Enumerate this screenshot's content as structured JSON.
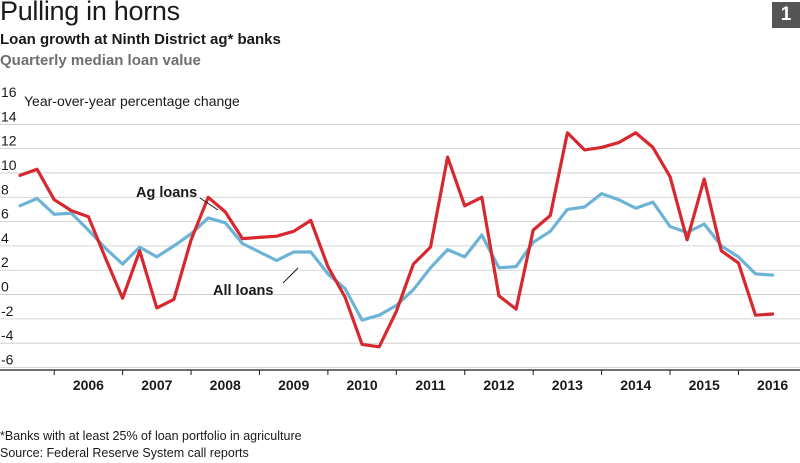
{
  "header": {
    "title": "Pulling in horns",
    "figure_number": "1",
    "subtitle": "Loan growth at Ninth District ag* banks",
    "subsubtitle": "Quarterly median loan value"
  },
  "footer": {
    "footnote": "*Banks with at least 25% of loan portfolio in agriculture",
    "source": "Source: Federal Reserve System call reports"
  },
  "colors": {
    "ag": "#d7282f",
    "all": "#6db3d6",
    "grid": "#c8c8c8",
    "axis": "#1a1a1a"
  },
  "chart_data": {
    "type": "line",
    "title": "Loan growth at Ninth District ag* banks",
    "subtitle": "Quarterly median loan value",
    "ylabel": "Year-over-year percentage change",
    "ylim": [
      -6,
      16
    ],
    "yticks": [
      16,
      14,
      12,
      10,
      8,
      6,
      4,
      2,
      0,
      -2,
      -4,
      -6
    ],
    "xlim": [
      2005.5,
      2016.9
    ],
    "year_labels": [
      "2006",
      "2007",
      "2008",
      "2009",
      "2010",
      "2011",
      "2012",
      "2013",
      "2014",
      "2015",
      "2016"
    ],
    "grid": true,
    "annotations": [
      {
        "text": "Ag loans",
        "series": "Ag loans"
      },
      {
        "text": "All loans",
        "series": "All loans"
      }
    ],
    "series": [
      {
        "name": "Ag loans",
        "color": "#d7282f",
        "x": [
          2005.5,
          2005.75,
          2006.0,
          2006.25,
          2006.5,
          2006.75,
          2007.0,
          2007.25,
          2007.5,
          2007.75,
          2008.0,
          2008.25,
          2008.5,
          2008.75,
          2009.0,
          2009.25,
          2009.5,
          2009.75,
          2010.0,
          2010.25,
          2010.5,
          2010.75,
          2011.0,
          2011.25,
          2011.5,
          2011.75,
          2012.0,
          2012.25,
          2012.5,
          2012.75,
          2013.0,
          2013.25,
          2013.5,
          2013.75,
          2014.0,
          2014.25,
          2014.5,
          2014.75,
          2015.0,
          2015.25,
          2015.5,
          2015.75,
          2016.0,
          2016.25,
          2016.5
        ],
        "values": [
          9.8,
          10.3,
          7.8,
          6.9,
          6.4,
          3.0,
          -0.3,
          3.6,
          -1.1,
          -0.4,
          4.5,
          8.0,
          6.8,
          4.6,
          4.7,
          4.8,
          5.2,
          6.1,
          2.3,
          -0.2,
          -4.1,
          -4.3,
          -1.4,
          2.5,
          3.9,
          11.3,
          7.3,
          8.0,
          -0.1,
          -1.2,
          5.3,
          6.5,
          13.3,
          11.9,
          12.1,
          12.5,
          13.3,
          12.1,
          9.7,
          4.5,
          9.5,
          3.6,
          2.6,
          -1.7,
          -1.6
        ]
      },
      {
        "name": "All loans",
        "color": "#6db3d6",
        "x": [
          2005.5,
          2005.75,
          2006.0,
          2006.25,
          2006.5,
          2006.75,
          2007.0,
          2007.25,
          2007.5,
          2007.75,
          2008.0,
          2008.25,
          2008.5,
          2008.75,
          2009.0,
          2009.25,
          2009.5,
          2009.75,
          2010.0,
          2010.25,
          2010.5,
          2010.75,
          2011.0,
          2011.25,
          2011.5,
          2011.75,
          2012.0,
          2012.25,
          2012.5,
          2012.75,
          2013.0,
          2013.25,
          2013.5,
          2013.75,
          2014.0,
          2014.25,
          2014.5,
          2014.75,
          2015.0,
          2015.25,
          2015.5,
          2015.75,
          2016.0,
          2016.25,
          2016.5
        ],
        "values": [
          7.3,
          7.9,
          6.6,
          6.7,
          5.3,
          3.8,
          2.5,
          3.9,
          3.1,
          4.0,
          5.0,
          6.3,
          5.9,
          4.2,
          3.5,
          2.8,
          3.5,
          3.5,
          1.7,
          0.5,
          -2.1,
          -1.7,
          -0.9,
          0.4,
          2.2,
          3.7,
          3.1,
          4.9,
          2.2,
          2.3,
          4.3,
          5.2,
          7.0,
          7.2,
          8.3,
          7.8,
          7.1,
          7.6,
          5.6,
          5.1,
          5.8,
          4.0,
          3.1,
          1.7,
          1.6
        ]
      }
    ]
  }
}
